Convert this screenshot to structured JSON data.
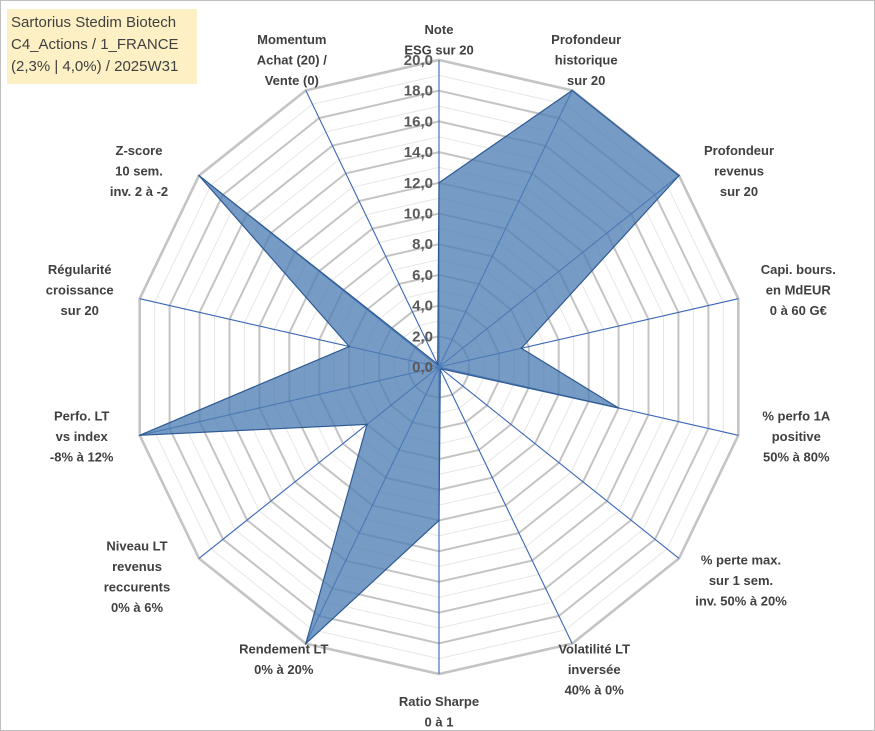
{
  "title_lines": [
    "Sartorius Stedim Biotech",
    "C4_Actions / 1_FRANCE",
    "(2,3% | 4,0%) / 2025W31"
  ],
  "colors": {
    "fill": "#4f7fb5",
    "stroke": "#2e5a94",
    "grid": "#c8c8c8",
    "spoke": "#3a66b5",
    "title_bg": "#fdf0c4"
  },
  "chart_data": {
    "type": "radar",
    "range": [
      0,
      20
    ],
    "grid_step": 1,
    "tick_labels": [
      "0,0",
      "2,0",
      "4,0",
      "6,0",
      "8,0",
      "10,0",
      "12,0",
      "14,0",
      "16,0",
      "18,0",
      "20,0"
    ],
    "tick_values": [
      0,
      2,
      4,
      6,
      8,
      10,
      12,
      14,
      16,
      18,
      20
    ],
    "axes": [
      {
        "label": [
          "Note",
          "ESG sur 20"
        ],
        "value": 12.0
      },
      {
        "label": [
          "Profondeur",
          "historique",
          "sur 20"
        ],
        "value": 20.0
      },
      {
        "label": [
          "Profondeur",
          "revenus",
          "sur 20"
        ],
        "value": 20.0
      },
      {
        "label": [
          "Capi. bours.",
          "en MdEUR",
          "0 à 60 G€"
        ],
        "value": 5.5
      },
      {
        "label": [
          "% perfo 1A",
          "positive",
          "50% à 80%"
        ],
        "value": 12.0
      },
      {
        "label": [
          "% perte max.",
          "sur 1 sem.",
          "inv. 50% à 20%"
        ],
        "value": 0.2
      },
      {
        "label": [
          "Volatilité LT",
          "inversée",
          "40% à 0%"
        ],
        "value": 0.2
      },
      {
        "label": [
          "Ratio Sharpe",
          "0 à 1"
        ],
        "value": 10.0
      },
      {
        "label": [
          "Rendement LT",
          "0% à 20%"
        ],
        "value": 20.0
      },
      {
        "label": [
          "Niveau LT",
          "revenus",
          "reccurents",
          "0% à 6%"
        ],
        "value": 6.0
      },
      {
        "label": [
          "Perfo. LT",
          "vs index",
          "-8% à 12%"
        ],
        "value": 20.0
      },
      {
        "label": [
          "Régularité",
          "croissance",
          "sur 20"
        ],
        "value": 6.0
      },
      {
        "label": [
          "Z-score",
          "10 sem.",
          "inv. 2 à -2"
        ],
        "value": 20.0
      },
      {
        "label": [
          "Momentum",
          "Achat (20) /",
          "Vente (0)"
        ],
        "value": 0.2
      }
    ]
  }
}
